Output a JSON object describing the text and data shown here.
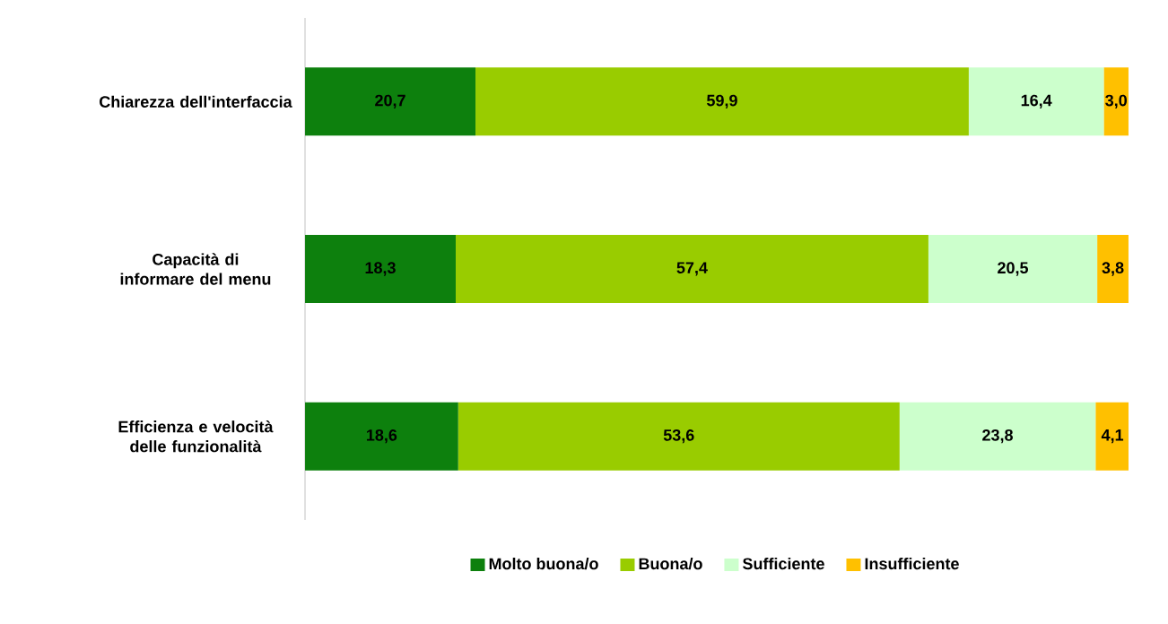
{
  "chart_data": {
    "type": "bar",
    "orientation": "horizontal",
    "stacked": true,
    "categories": [
      "Chiarezza dell'interfaccia",
      "Capacità di informare del menu",
      "Efficienza e velocità delle funzionalità"
    ],
    "series": [
      {
        "name": "Molto buona/o",
        "color": "#0d800d",
        "values": [
          20.7,
          18.3,
          18.6
        ],
        "value_labels": [
          "20,7",
          "18,3",
          "18,6"
        ]
      },
      {
        "name": "Buona/o",
        "color": "#99cc00",
        "values": [
          59.9,
          57.4,
          53.6
        ],
        "value_labels": [
          "59,9",
          "57,4",
          "53,6"
        ]
      },
      {
        "name": "Sufficiente",
        "color": "#ccffcc",
        "values": [
          16.4,
          20.5,
          23.8
        ],
        "value_labels": [
          "16,4",
          "20,5",
          "23,8"
        ]
      },
      {
        "name": "Insufficiente",
        "color": "#ffc000",
        "values": [
          3.0,
          3.8,
          4.1
        ],
        "value_labels": [
          "3,0",
          "3,8",
          "4,1"
        ]
      }
    ],
    "xlim": [
      0,
      100
    ],
    "tick_labels": "y",
    "legend": "bottom"
  }
}
